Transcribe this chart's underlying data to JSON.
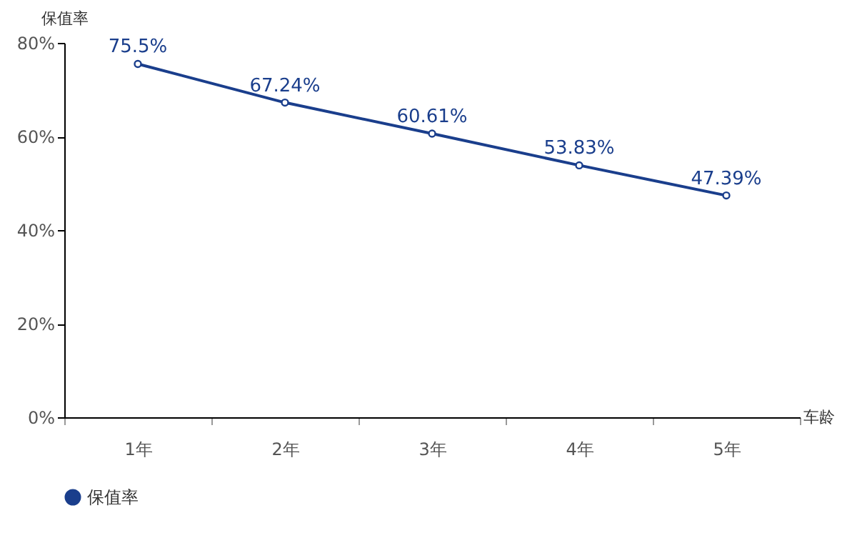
{
  "chart_data": {
    "type": "line",
    "ylabel": "保值率",
    "xlabel": "车龄",
    "categories": [
      "1年",
      "2年",
      "3年",
      "4年",
      "5年"
    ],
    "series": [
      {
        "name": "保值率",
        "color": "#1a3e8c",
        "values": [
          75.5,
          67.24,
          60.61,
          53.83,
          47.39
        ],
        "value_labels": [
          "75.5%",
          "67.24%",
          "60.61%",
          "53.83%",
          "47.39%"
        ]
      }
    ],
    "ylim": [
      0,
      80
    ],
    "yticks": [
      {
        "value": 0,
        "label": "0%"
      },
      {
        "value": 20,
        "label": "20%"
      },
      {
        "value": 40,
        "label": "40%"
      },
      {
        "value": 60,
        "label": "60%"
      },
      {
        "value": 80,
        "label": "80%"
      }
    ],
    "marker": "circle",
    "legend": "bottom",
    "grid": false
  }
}
